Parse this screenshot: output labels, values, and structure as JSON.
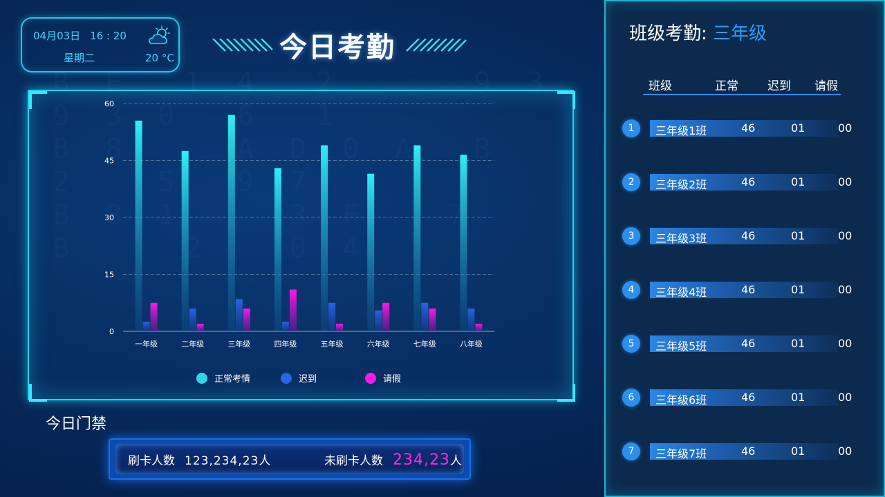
{
  "datetime": {
    "date": "04月03日",
    "time": "16 : 20",
    "weekday": "星期二",
    "temp": "20 °C"
  },
  "title": "今日考勤",
  "chart_data": {
    "type": "bar",
    "categories": [
      "一年级",
      "二年级",
      "三年级",
      "四年级",
      "五年级",
      "六年级",
      "七年级",
      "八年级"
    ],
    "series": [
      {
        "name": "正常考情",
        "values": [
          55.5,
          47.5,
          57,
          43,
          49,
          41.5,
          49,
          46.5
        ],
        "color": "#2ee6f0"
      },
      {
        "name": "迟到",
        "values": [
          2.5,
          6,
          8.5,
          2.5,
          7.5,
          5.5,
          7.5,
          6
        ],
        "color": "#2a63e8"
      },
      {
        "name": "请假",
        "values": [
          7.5,
          2,
          6,
          11,
          2,
          7.5,
          6,
          2
        ],
        "color": "#ff19e6"
      }
    ],
    "yticks": [
      0,
      15,
      30,
      45,
      60
    ],
    "ylim": [
      0,
      60
    ],
    "grid": true,
    "legend": "bottom"
  },
  "access": {
    "title": "今日门禁",
    "swiped_label": "刷卡人数",
    "swiped_value": "123,234,23人",
    "unswiped_label": "未刷卡人数",
    "unswiped_value": "234,23",
    "unswiped_unit": "人"
  },
  "right": {
    "title_prefix": "班级考勤:",
    "title_grade": "三年级",
    "headers": {
      "class": "班级",
      "normal": "正常",
      "late": "迟到",
      "leave": "请假"
    },
    "rows": [
      {
        "num": "1",
        "name": "三年级1班",
        "normal": "46",
        "late": "01",
        "leave": "00"
      },
      {
        "num": "2",
        "name": "三年级2班",
        "normal": "46",
        "late": "01",
        "leave": "00"
      },
      {
        "num": "3",
        "name": "三年级3班",
        "normal": "46",
        "late": "01",
        "leave": "00"
      },
      {
        "num": "4",
        "name": "三年级4班",
        "normal": "46",
        "late": "01",
        "leave": "00"
      },
      {
        "num": "5",
        "name": "三年级5班",
        "normal": "46",
        "late": "01",
        "leave": "00"
      },
      {
        "num": "6",
        "name": "三年级6班",
        "normal": "46",
        "late": "01",
        "leave": "00"
      },
      {
        "num": "7",
        "name": "三年级7班",
        "normal": "46",
        "late": "01",
        "leave": "00"
      }
    ]
  }
}
